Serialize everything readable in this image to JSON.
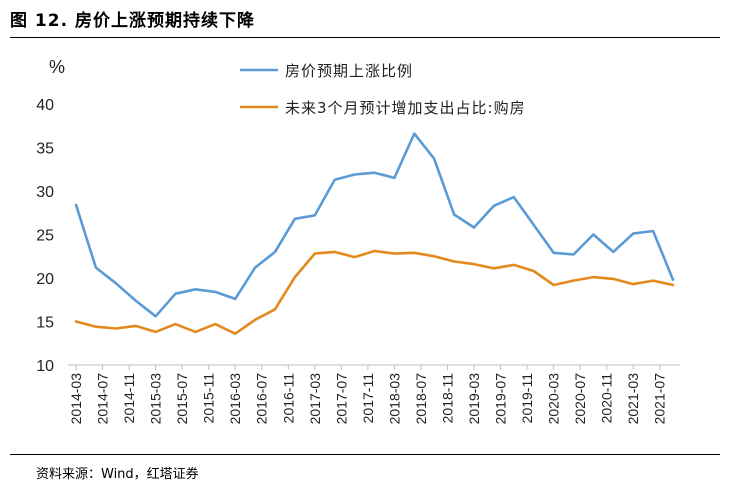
{
  "figure": {
    "title": "图 12. 房价上涨预期持续下降",
    "source": "资料来源：Wind，红塔证券"
  },
  "chart_data": {
    "type": "line",
    "ylabel": "%",
    "ylim": [
      10,
      40
    ],
    "yticks": [
      10,
      15,
      20,
      25,
      30,
      35,
      40
    ],
    "grid": false,
    "legend_position": "top-right",
    "x": [
      "2014-03",
      "2014-05",
      "2014-07",
      "2014-09",
      "2014-11",
      "2015-01",
      "2015-03",
      "2015-05",
      "2015-07",
      "2015-09",
      "2015-11",
      "2016-01",
      "2016-03",
      "2016-05",
      "2016-07",
      "2016-09",
      "2016-11",
      "2017-01",
      "2017-03",
      "2017-05",
      "2017-07",
      "2017-09",
      "2017-11",
      "2018-01",
      "2018-03",
      "2018-05",
      "2018-07",
      "2018-09",
      "2018-11",
      "2019-01",
      "2019-03",
      "2019-05",
      "2019-07",
      "2019-09",
      "2019-11",
      "2020-01",
      "2020-03",
      "2020-05",
      "2020-07",
      "2020-09",
      "2020-11",
      "2021-01",
      "2021-03",
      "2021-05",
      "2021-07",
      "2021-09"
    ],
    "xticks": [
      "2014-03",
      "2014-07",
      "2014-11",
      "2015-03",
      "2015-07",
      "2015-11",
      "2016-03",
      "2016-07",
      "2016-11",
      "2017-03",
      "2017-07",
      "2017-11",
      "2018-03",
      "2018-07",
      "2018-11",
      "2019-03",
      "2019-07",
      "2019-11",
      "2020-03",
      "2020-07",
      "2020-11",
      "2021-03",
      "2021-07"
    ],
    "series": [
      {
        "name": "房价预期上涨比例",
        "color": "#5b9bd5",
        "points": [
          [
            "2014-03",
            28.4
          ],
          [
            "2014-06",
            21.2
          ],
          [
            "2014-09",
            19.4
          ],
          [
            "2014-12",
            17.4
          ],
          [
            "2015-03",
            15.6
          ],
          [
            "2015-06",
            18.2
          ],
          [
            "2015-09",
            18.7
          ],
          [
            "2015-12",
            18.4
          ],
          [
            "2016-03",
            17.6
          ],
          [
            "2016-06",
            21.2
          ],
          [
            "2016-09",
            23.0
          ],
          [
            "2016-12",
            26.8
          ],
          [
            "2017-03",
            27.2
          ],
          [
            "2017-06",
            31.3
          ],
          [
            "2017-09",
            31.9
          ],
          [
            "2017-12",
            32.1
          ],
          [
            "2018-03",
            31.5
          ],
          [
            "2018-06",
            36.6
          ],
          [
            "2018-09",
            33.7
          ],
          [
            "2018-12",
            27.3
          ],
          [
            "2019-03",
            25.8
          ],
          [
            "2019-06",
            28.3
          ],
          [
            "2019-09",
            29.3
          ],
          [
            "2019-12",
            26.1
          ],
          [
            "2020-03",
            22.9
          ],
          [
            "2020-06",
            22.7
          ],
          [
            "2020-09",
            25.0
          ],
          [
            "2020-12",
            23.0
          ],
          [
            "2021-03",
            25.1
          ],
          [
            "2021-06",
            25.4
          ],
          [
            "2021-09",
            19.8
          ]
        ]
      },
      {
        "name": "未来3个月预计增加支出占比:购房",
        "color": "#e38a1f",
        "points": [
          [
            "2014-03",
            15.0
          ],
          [
            "2014-06",
            14.4
          ],
          [
            "2014-09",
            14.2
          ],
          [
            "2014-12",
            14.5
          ],
          [
            "2015-03",
            13.8
          ],
          [
            "2015-06",
            14.7
          ],
          [
            "2015-09",
            13.8
          ],
          [
            "2015-12",
            14.7
          ],
          [
            "2016-03",
            13.6
          ],
          [
            "2016-06",
            15.2
          ],
          [
            "2016-09",
            16.4
          ],
          [
            "2016-12",
            20.1
          ],
          [
            "2017-03",
            22.8
          ],
          [
            "2017-06",
            23.0
          ],
          [
            "2017-09",
            22.4
          ],
          [
            "2017-12",
            23.1
          ],
          [
            "2018-03",
            22.8
          ],
          [
            "2018-06",
            22.9
          ],
          [
            "2018-09",
            22.5
          ],
          [
            "2018-12",
            21.9
          ],
          [
            "2019-03",
            21.6
          ],
          [
            "2019-06",
            21.1
          ],
          [
            "2019-09",
            21.5
          ],
          [
            "2019-12",
            20.8
          ],
          [
            "2020-03",
            19.2
          ],
          [
            "2020-06",
            19.7
          ],
          [
            "2020-09",
            20.1
          ],
          [
            "2020-12",
            19.9
          ],
          [
            "2021-03",
            19.3
          ],
          [
            "2021-06",
            19.7
          ],
          [
            "2021-09",
            19.2
          ]
        ]
      }
    ]
  }
}
